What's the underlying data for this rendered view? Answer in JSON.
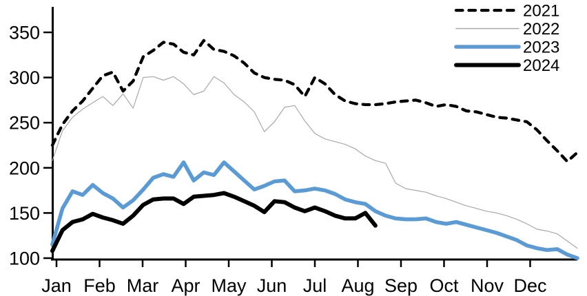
{
  "chart": {
    "title": "",
    "background": "#ffffff",
    "text_color": "#000000",
    "axis_color": "#000000"
  },
  "chart_data": {
    "type": "line",
    "title": "",
    "xlabel": "",
    "ylabel": "",
    "grid": "off",
    "x_axis": {
      "tick_labels": [
        "Jan",
        "Feb",
        "Mar",
        "Apr",
        "May",
        "Jun",
        "Jul",
        "Aug",
        "Sep",
        "Oct",
        "Nov",
        "Dec"
      ]
    },
    "y_axis": {
      "ticks": [
        100,
        150,
        200,
        250,
        300,
        350
      ],
      "range": [
        100,
        360
      ]
    },
    "legend": {
      "position": "top-right",
      "entries": [
        "2021",
        "2022",
        "2023",
        "2024"
      ]
    },
    "series": [
      {
        "name": "2021",
        "color": "#000000",
        "line_style": "dashed",
        "line_width": 4.3,
        "values": [
          225,
          248,
          263,
          274,
          288,
          302,
          306,
          285,
          296,
          323,
          330,
          339,
          337,
          328,
          325,
          341,
          331,
          329,
          324,
          316,
          305,
          300,
          298,
          297,
          292,
          279,
          300,
          293,
          281,
          274,
          271,
          270,
          270,
          271,
          273,
          274,
          275,
          272,
          268,
          270,
          268,
          263,
          262,
          259,
          256,
          255,
          253,
          251,
          242,
          230,
          219,
          207,
          217
        ]
      },
      {
        "name": "2022",
        "color": "#A8A8A8",
        "line_style": "solid",
        "line_width": 1.2,
        "values": [
          208,
          241,
          256,
          265,
          272,
          279,
          269,
          282,
          266,
          300,
          301,
          297,
          301,
          293,
          281,
          285,
          301,
          294,
          281,
          273,
          262,
          240,
          251,
          267,
          269,
          252,
          238,
          232,
          229,
          226,
          221,
          213,
          208,
          205,
          183,
          177,
          175,
          173,
          169,
          166,
          162,
          158,
          155,
          152,
          150,
          147,
          143,
          138,
          132,
          130,
          127,
          119,
          111
        ]
      },
      {
        "name": "2023",
        "color": "#5B9BD5",
        "line_style": "solid",
        "line_width": 5.6,
        "values": [
          115,
          155,
          174,
          170,
          181,
          172,
          166,
          156,
          164,
          176,
          189,
          193,
          190,
          206,
          186,
          195,
          192,
          206,
          196,
          186,
          176,
          180,
          185,
          186,
          174,
          175,
          177,
          175,
          171,
          165,
          162,
          160,
          152,
          147,
          144,
          143,
          143,
          144,
          140,
          138,
          140,
          137,
          134,
          131,
          128,
          124,
          120,
          114,
          111,
          109,
          110,
          104,
          100
        ]
      },
      {
        "name": "2024",
        "color": "#000000",
        "line_style": "solid",
        "line_width": 6,
        "values": [
          108,
          131,
          140,
          143,
          149,
          145,
          142,
          138,
          147,
          159,
          165,
          166,
          166,
          160,
          168,
          169,
          170,
          172,
          168,
          163,
          158,
          151,
          163,
          162,
          156,
          152,
          156,
          152,
          147,
          144,
          144,
          150,
          136
        ]
      }
    ]
  }
}
